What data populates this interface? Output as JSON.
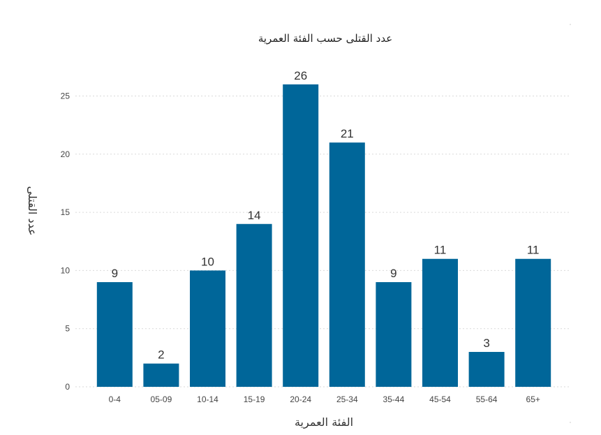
{
  "chart_data": {
    "type": "bar",
    "title": "عدد القتلى حسب الفئة العمرية",
    "xlabel": "الفئة العمرية",
    "ylabel": "عدد القتلى",
    "categories": [
      "0-4",
      "05-09",
      "10-14",
      "15-19",
      "20-24",
      "25-34",
      "35-44",
      "45-54",
      "55-64",
      "65+"
    ],
    "values": [
      9,
      2,
      10,
      14,
      26,
      21,
      9,
      11,
      3,
      11
    ],
    "ylim": [
      0,
      27
    ],
    "yticks": [
      0,
      5,
      10,
      15,
      20,
      25
    ],
    "grid": true,
    "data_labels": true,
    "bar_color": "#006699"
  }
}
